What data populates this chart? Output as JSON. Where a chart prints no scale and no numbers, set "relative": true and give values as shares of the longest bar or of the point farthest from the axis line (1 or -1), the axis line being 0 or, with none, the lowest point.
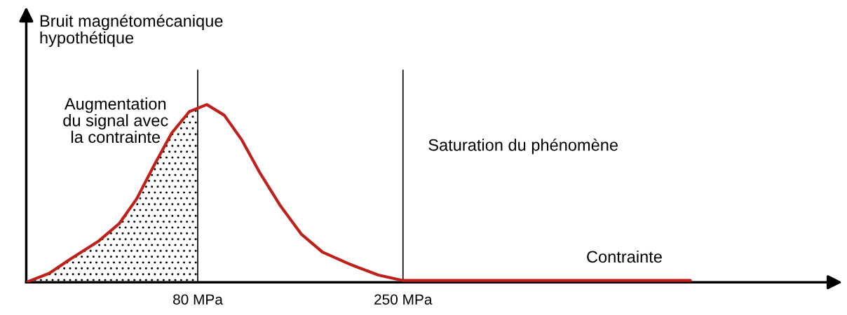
{
  "chart_data": {
    "type": "line",
    "relative": true,
    "ylabel": "Bruit magnétomécanique\nhypothétique",
    "xlabel": "Contrainte",
    "xlim": [
      -62,
      610
    ],
    "xticks": [
      {
        "value": 80,
        "label": "80 MPa"
      },
      {
        "value": 250,
        "label": "250 MPa"
      }
    ],
    "grid": false,
    "series": [
      {
        "color": "#c0201a",
        "x": [
          -62,
          -43,
          -25.6,
          -2.4,
          15,
          29.5,
          44,
          58.5,
          73,
          87.5,
          102,
          116.6,
          131.1,
          148.5,
          165.9,
          183.3,
          206.5,
          229.7,
          250,
          293.5,
          488
        ],
        "values": [
          0,
          0.05,
          0.13,
          0.23,
          0.33,
          0.47,
          0.66,
          0.84,
          0.96,
          1.0,
          0.94,
          0.8,
          0.62,
          0.43,
          0.27,
          0.17,
          0.1,
          0.04,
          0.01,
          0.01,
          0.01
        ]
      },
      {
        "type": "area",
        "color": "#000000",
        "x": [
          -62,
          -43,
          -25.6,
          -2.4,
          15,
          29.5,
          44,
          58.5,
          73,
          80
        ],
        "values": [
          0,
          0.05,
          0.13,
          0.23,
          0.33,
          0.47,
          0.66,
          0.84,
          0.96,
          0.99
        ]
      }
    ],
    "ref_lines": [
      {
        "axis": "x",
        "value": 80,
        "color": "#000000"
      },
      {
        "axis": "x",
        "value": 250,
        "color": "#000000"
      }
    ],
    "annotations": [
      "Augmentation\ndu signal avec\nla contrainte",
      "Saturation du phénomène"
    ]
  }
}
